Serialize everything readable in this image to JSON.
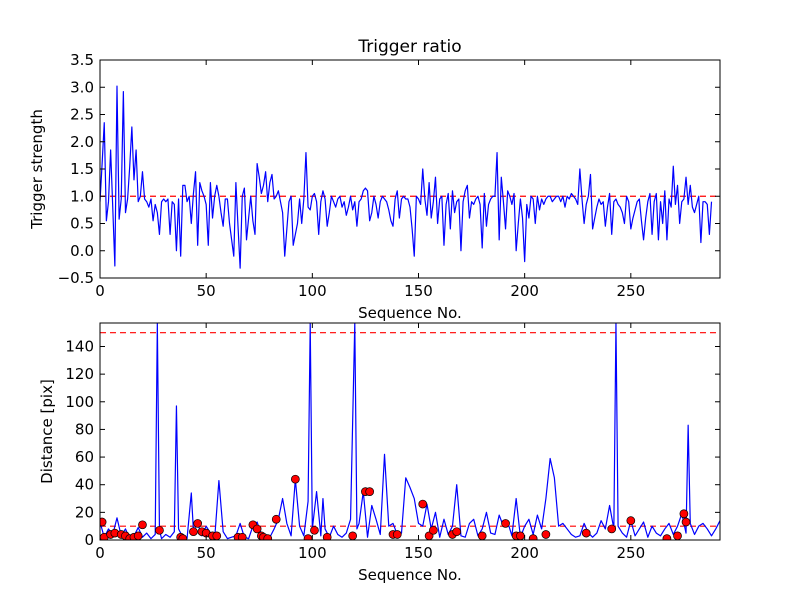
{
  "chart_data": [
    {
      "type": "line",
      "title": "Trigger ratio",
      "xlabel": "Sequence No.",
      "ylabel": "Trigger strength",
      "xlim": [
        0,
        292
      ],
      "ylim": [
        -0.5,
        3.5
      ],
      "xticks": [
        0,
        50,
        100,
        150,
        200,
        250
      ],
      "yticks": [
        -0.5,
        0.0,
        0.5,
        1.0,
        1.5,
        2.0,
        2.5,
        3.0,
        3.5
      ],
      "ytick_labels": [
        "−0.5",
        "0.0",
        "0.5",
        "1.0",
        "1.5",
        "2.0",
        "2.5",
        "3.0",
        "3.5"
      ],
      "threshold": 1.0,
      "line_color": "#0000ff",
      "threshold_color": "#ff0000",
      "series": [
        {
          "x_start": 0,
          "values": [
            0.9,
            1.6,
            2.35,
            0.55,
            0.9,
            1.85,
            0.8,
            -0.28,
            3.02,
            0.58,
            0.95,
            2.92,
            0.7,
            0.95,
            1.55,
            2.27,
            1.3,
            1.85,
            0.9,
            1.0,
            1.45,
            0.95,
            0.9,
            0.8,
            0.95,
            0.55,
            0.85,
            0.7,
            0.3,
            0.9,
            0.95,
            0.9,
            0.95,
            0.3,
            0.9,
            0.85,
            0.0,
            0.95,
            -0.1,
            1.2,
            1.2,
            0.9,
            1.0,
            0.5,
            1.05,
            1.45,
            0.1,
            1.25,
            1.1,
            1.0,
            0.85,
            0.1,
            1.25,
            0.6,
            1.0,
            1.2,
            1.0,
            0.7,
            0.45,
            0.95,
            0.95,
            0.5,
            0.2,
            -0.1,
            1.25,
            0.45,
            -0.32,
            1.0,
            1.15,
            0.2,
            0.6,
            1.0,
            0.55,
            0.3,
            1.6,
            1.35,
            1.05,
            1.2,
            1.45,
            0.9,
            1.25,
            1.4,
            0.95,
            1.0,
            1.1,
            0.9,
            0.7,
            -0.1,
            0.4,
            0.9,
            1.0,
            0.1,
            0.3,
            0.5,
            0.95,
            0.5,
            0.95,
            1.8,
            0.8,
            0.75,
            1.0,
            1.05,
            0.9,
            0.3,
            0.9,
            1.1,
            0.95,
            0.45,
            0.7,
            1.0,
            0.9,
            0.8,
            0.95,
            1.0,
            0.8,
            0.9,
            0.65,
            0.8,
            1.0,
            0.75,
            0.9,
            0.45,
            0.9,
            0.95,
            1.1,
            1.15,
            1.1,
            0.55,
            0.7,
            1.0,
            0.85,
            0.6,
            0.9,
            1.0,
            0.95,
            0.9,
            0.75,
            0.55,
            0.45,
            0.95,
            1.1,
            0.6,
            0.95,
            1.0,
            0.95,
            0.95,
            0.8,
            0.4,
            -0.1,
            1.0,
            0.95,
            0.85,
            1.5,
            0.95,
            0.65,
            1.25,
            0.6,
            0.9,
            1.35,
            0.5,
            0.95,
            1.0,
            0.1,
            0.85,
            1.05,
            0.4,
            1.1,
            0.7,
            0.9,
            0.95,
            0.0,
            0.9,
            1.1,
            1.2,
            0.6,
            0.9,
            0.85,
            0.95,
            1.0,
            0.85,
            0.05,
            1.05,
            0.45,
            0.85,
            0.95,
            1.0,
            1.0,
            1.8,
            0.2,
            1.35,
            0.9,
            0.4,
            1.1,
            1.0,
            0.85,
            1.05,
            0.0,
            0.5,
            0.95,
            0.6,
            -0.2,
            0.85,
            0.6,
            1.0,
            0.95,
            0.5,
            1.0,
            0.75,
            0.95,
            0.85,
            0.95,
            1.0,
            1.0,
            0.9,
            0.95,
            1.0,
            1.0,
            0.9,
            1.0,
            0.8,
            1.0,
            0.95,
            1.05,
            1.0,
            0.95,
            0.85,
            1.5,
            0.95,
            0.5,
            0.85,
            1.0,
            1.4,
            0.4,
            0.6,
            0.8,
            0.95,
            0.85,
            0.9,
            0.45,
            0.8,
            1.05,
            0.3,
            0.9,
            0.95,
            0.85,
            0.8,
            0.7,
            0.5,
            1.0,
            0.9,
            0.4,
            0.6,
            0.75,
            0.9,
            0.95,
            0.55,
            0.2,
            0.6,
            0.9,
            1.05,
            0.3,
            0.9,
            1.05,
            0.2,
            0.9,
            0.5,
            1.1,
            0.2,
            0.95,
            0.8,
            1.55,
            0.85,
            1.2,
            0.5,
            0.9,
            0.95,
            1.35,
            0.85,
            1.2,
            0.8,
            0.7,
            0.85,
            1.0,
            0.15,
            0.9,
            0.9,
            0.85,
            0.3,
            0.9
          ]
        }
      ]
    },
    {
      "type": "line",
      "xlabel": "Sequence No.",
      "ylabel": "Distance [pix]",
      "xlim": [
        0,
        292
      ],
      "ylim": [
        0,
        157
      ],
      "xticks": [
        0,
        50,
        100,
        150,
        200,
        250
      ],
      "yticks": [
        0,
        20,
        40,
        60,
        80,
        100,
        120,
        140
      ],
      "thresholds": [
        150,
        10
      ],
      "line_color": "#0000ff",
      "threshold_color": "#ff0000",
      "marker_color": "#ff0000",
      "series": [
        {
          "x": [
            0,
            2,
            4,
            6,
            8,
            10,
            12,
            14,
            16,
            18,
            20,
            22,
            24,
            26,
            27,
            28,
            29,
            31,
            33,
            35,
            36,
            37,
            39,
            41,
            43,
            44,
            46,
            48,
            50,
            52,
            54,
            56,
            58,
            60,
            62,
            64,
            66,
            68,
            70,
            72,
            74,
            76,
            78,
            80,
            82,
            84,
            86,
            88,
            90,
            92,
            94,
            96,
            98,
            99,
            100,
            102,
            104,
            105,
            106,
            108,
            110,
            112,
            114,
            116,
            118,
            120,
            121,
            122,
            124,
            126,
            128,
            130,
            132,
            134,
            136,
            138,
            140,
            142,
            144,
            146,
            148,
            150,
            152,
            154,
            156,
            158,
            160,
            162,
            164,
            166,
            168,
            170,
            172,
            174,
            176,
            178,
            180,
            182,
            184,
            186,
            188,
            190,
            192,
            194,
            196,
            198,
            200,
            202,
            204,
            206,
            208,
            210,
            212,
            214,
            216,
            218,
            220,
            222,
            224,
            226,
            228,
            230,
            232,
            234,
            236,
            238,
            240,
            242,
            243,
            244,
            246,
            248,
            250,
            252,
            254,
            256,
            258,
            260,
            262,
            264,
            266,
            268,
            270,
            272,
            274,
            276,
            277,
            278,
            280,
            282,
            284,
            286,
            288,
            290,
            292
          ],
          "values": [
            13,
            2,
            8,
            4,
            16,
            3,
            8,
            1,
            3,
            9,
            2,
            5,
            1,
            4,
            157,
            7,
            1,
            4,
            2,
            6,
            97,
            8,
            2,
            1,
            34,
            7,
            12,
            3,
            10,
            5,
            1,
            43,
            6,
            1,
            2,
            3,
            12,
            2,
            1,
            10,
            13,
            4,
            1,
            2,
            8,
            15,
            30,
            12,
            3,
            44,
            10,
            3,
            28,
            157,
            8,
            35,
            3,
            30,
            8,
            2,
            10,
            4,
            2,
            5,
            15,
            157,
            8,
            12,
            35,
            2,
            25,
            15,
            4,
            62,
            10,
            12,
            4,
            5,
            45,
            38,
            30,
            12,
            10,
            26,
            8,
            20,
            2,
            15,
            4,
            10,
            40,
            3,
            2,
            12,
            15,
            3,
            8,
            20,
            5,
            4,
            18,
            10,
            13,
            3,
            30,
            2,
            10,
            15,
            4,
            18,
            8,
            30,
            59,
            45,
            10,
            12,
            8,
            4,
            2,
            3,
            12,
            5,
            2,
            5,
            14,
            8,
            25,
            8,
            157,
            10,
            5,
            2,
            14,
            3,
            8,
            13,
            2,
            10,
            5,
            3,
            8,
            12,
            4,
            10,
            19,
            5,
            83,
            12,
            4,
            10,
            12,
            8,
            3,
            8,
            14
          ]
        },
        {
          "name": "",
          "type": "scatter",
          "x": [
            1,
            2,
            5,
            7,
            10,
            12,
            14,
            16,
            18,
            20,
            28,
            38,
            39,
            44,
            46,
            48,
            50,
            53,
            55,
            65,
            67,
            72,
            74,
            76,
            77,
            79,
            83,
            92,
            98,
            101,
            107,
            119,
            125,
            127,
            138,
            140,
            152,
            155,
            157,
            166,
            168,
            180,
            191,
            196,
            198,
            204,
            210,
            229,
            241,
            250,
            267,
            272,
            275,
            276
          ],
          "values": [
            13,
            2,
            4,
            5,
            4,
            3,
            1,
            2,
            3,
            11,
            7,
            2,
            1,
            6,
            12,
            6,
            5,
            3,
            3,
            2,
            2,
            11,
            8,
            3,
            2,
            1,
            15,
            44,
            1,
            7,
            2,
            3,
            35,
            35,
            4,
            4,
            26,
            3,
            7,
            4,
            6,
            3,
            12,
            3,
            3,
            1,
            4,
            5,
            8,
            14,
            1,
            3,
            19,
            13
          ]
        }
      ]
    }
  ]
}
